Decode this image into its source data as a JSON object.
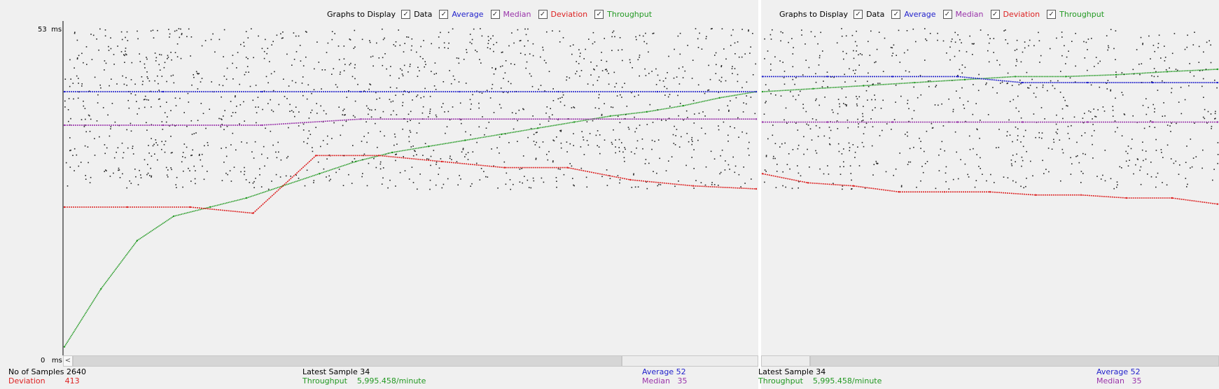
{
  "legend": {
    "title": "Graphs to Display",
    "items": [
      {
        "label": "Data",
        "color": "#000000",
        "checked": true
      },
      {
        "label": "Average",
        "color": "#2222cc",
        "checked": true
      },
      {
        "label": "Median",
        "color": "#9933aa",
        "checked": true
      },
      {
        "label": "Deviation",
        "color": "#dd2222",
        "checked": true
      },
      {
        "label": "Throughput",
        "color": "#229922",
        "checked": true
      }
    ]
  },
  "axis": {
    "y_max_label": "53",
    "y_min_label": "0",
    "unit": "ms"
  },
  "scroll_left_label": "<",
  "panel1": {
    "samples_label": "No of Samples",
    "samples_value": "2640",
    "deviation_label": "Deviation",
    "deviation_value": "413",
    "latest_label": "Latest Sample",
    "latest_value": "34",
    "throughput_label": "Throughput",
    "throughput_value": "5,995.458/minute",
    "average_label": "Average",
    "average_value": "52",
    "median_label": "Median",
    "median_value": "35"
  },
  "panel2": {
    "latest_label": "Latest Sample",
    "latest_value": "34",
    "throughput_label": "Throughput",
    "throughput_value": "5,995.458/minute",
    "average_label": "Average",
    "average_value": "52",
    "median_label": "Median",
    "median_value": "35"
  },
  "chart_data": [
    {
      "type": "scatter",
      "ylim": [
        0,
        53
      ],
      "series": [
        {
          "name": "Throughput",
          "y": [
            0.5,
            10,
            18,
            22,
            23.5,
            25,
            27,
            29,
            31,
            32.5,
            33.5,
            34.5,
            35.5,
            36.5,
            37.5,
            38.5,
            39.2,
            40.2,
            41.5,
            42.5
          ],
          "color": "#229922"
        },
        {
          "name": "Average",
          "y": [
            42.5,
            42.5,
            42.5,
            42.5,
            42.5,
            42.5,
            42.5,
            42.5
          ],
          "color": "#2222cc"
        },
        {
          "name": "Median",
          "y": [
            37,
            37,
            37,
            38,
            38,
            38,
            38,
            38
          ],
          "color": "#9933aa"
        },
        {
          "name": "Deviation",
          "y": [
            23.5,
            23.5,
            23.5,
            22.5,
            32,
            32,
            31,
            30,
            30,
            28,
            27,
            26.5
          ],
          "color": "#dd2222"
        }
      ]
    },
    {
      "type": "scatter",
      "ylim": [
        0,
        53
      ],
      "series": [
        {
          "name": "Throughput",
          "y": [
            42.5,
            43,
            43.5,
            44,
            44.5,
            45,
            45,
            45.3,
            45.8,
            46.2
          ],
          "color": "#229922"
        },
        {
          "name": "Average",
          "y": [
            45,
            45,
            45,
            45,
            44,
            44,
            44,
            44
          ],
          "color": "#2222cc"
        },
        {
          "name": "Median",
          "y": [
            37.5,
            37.5,
            37.5,
            37.5,
            37.5,
            37.5,
            37.5,
            37.5
          ],
          "color": "#9933aa"
        },
        {
          "name": "Deviation",
          "y": [
            29,
            27.5,
            27,
            26,
            26,
            26,
            25.5,
            25.5,
            25,
            25,
            24
          ],
          "color": "#dd2222"
        }
      ]
    }
  ]
}
